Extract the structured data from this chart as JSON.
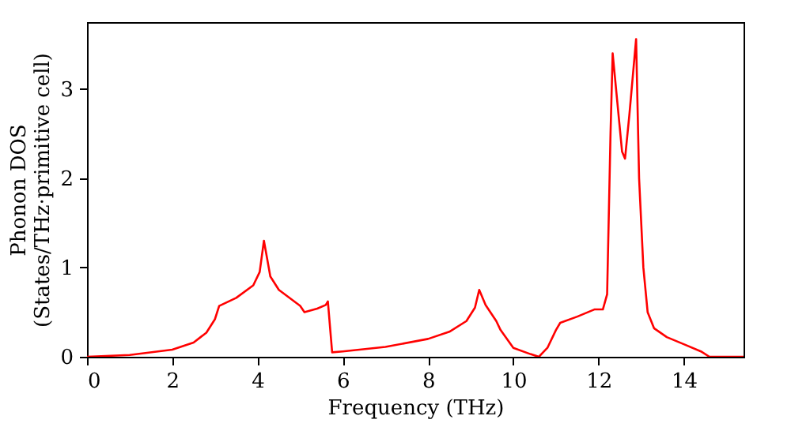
{
  "chart_data": {
    "type": "line",
    "xlabel": "Frequency (THz)",
    "ylabel": "Phonon DOS\n(States/THz·primitive cell)",
    "xlim": [
      0,
      15.4
    ],
    "ylim": [
      0,
      3.75
    ],
    "xticks": [
      0,
      2,
      4,
      6,
      8,
      10,
      12,
      14
    ],
    "yticks": [
      0,
      1,
      2,
      3
    ],
    "grid": false,
    "line_style": "solid",
    "marker": "none",
    "x": [
      0,
      1,
      2,
      2.5,
      2.8,
      3.0,
      3.1,
      3.5,
      3.9,
      4.05,
      4.15,
      4.3,
      4.5,
      5.0,
      5.1,
      5.4,
      5.6,
      5.65,
      5.75,
      6,
      7,
      8,
      8.5,
      8.9,
      9.1,
      9.2,
      9.35,
      9.6,
      9.7,
      10.0,
      10.4,
      10.6,
      10.8,
      11.0,
      11.1,
      11.5,
      11.9,
      12.1,
      12.2,
      12.28,
      12.33,
      12.45,
      12.55,
      12.62,
      12.72,
      12.88,
      12.95,
      13.05,
      13.15,
      13.3,
      13.6,
      14.0,
      14.4,
      14.6,
      15.4
    ],
    "series": [
      {
        "color": "#ff0000",
        "values": [
          0,
          0.02,
          0.08,
          0.16,
          0.27,
          0.42,
          0.57,
          0.66,
          0.8,
          0.95,
          1.3,
          0.9,
          0.75,
          0.57,
          0.5,
          0.54,
          0.58,
          0.62,
          0.05,
          0.06,
          0.11,
          0.2,
          0.28,
          0.4,
          0.55,
          0.75,
          0.58,
          0.4,
          0.3,
          0.1,
          0.03,
          0.0,
          0.1,
          0.3,
          0.38,
          0.45,
          0.53,
          0.53,
          0.7,
          2.5,
          3.4,
          2.8,
          2.3,
          2.22,
          2.7,
          3.56,
          2.0,
          1.0,
          0.5,
          0.32,
          0.22,
          0.14,
          0.06,
          0.0,
          0.0
        ]
      }
    ]
  }
}
